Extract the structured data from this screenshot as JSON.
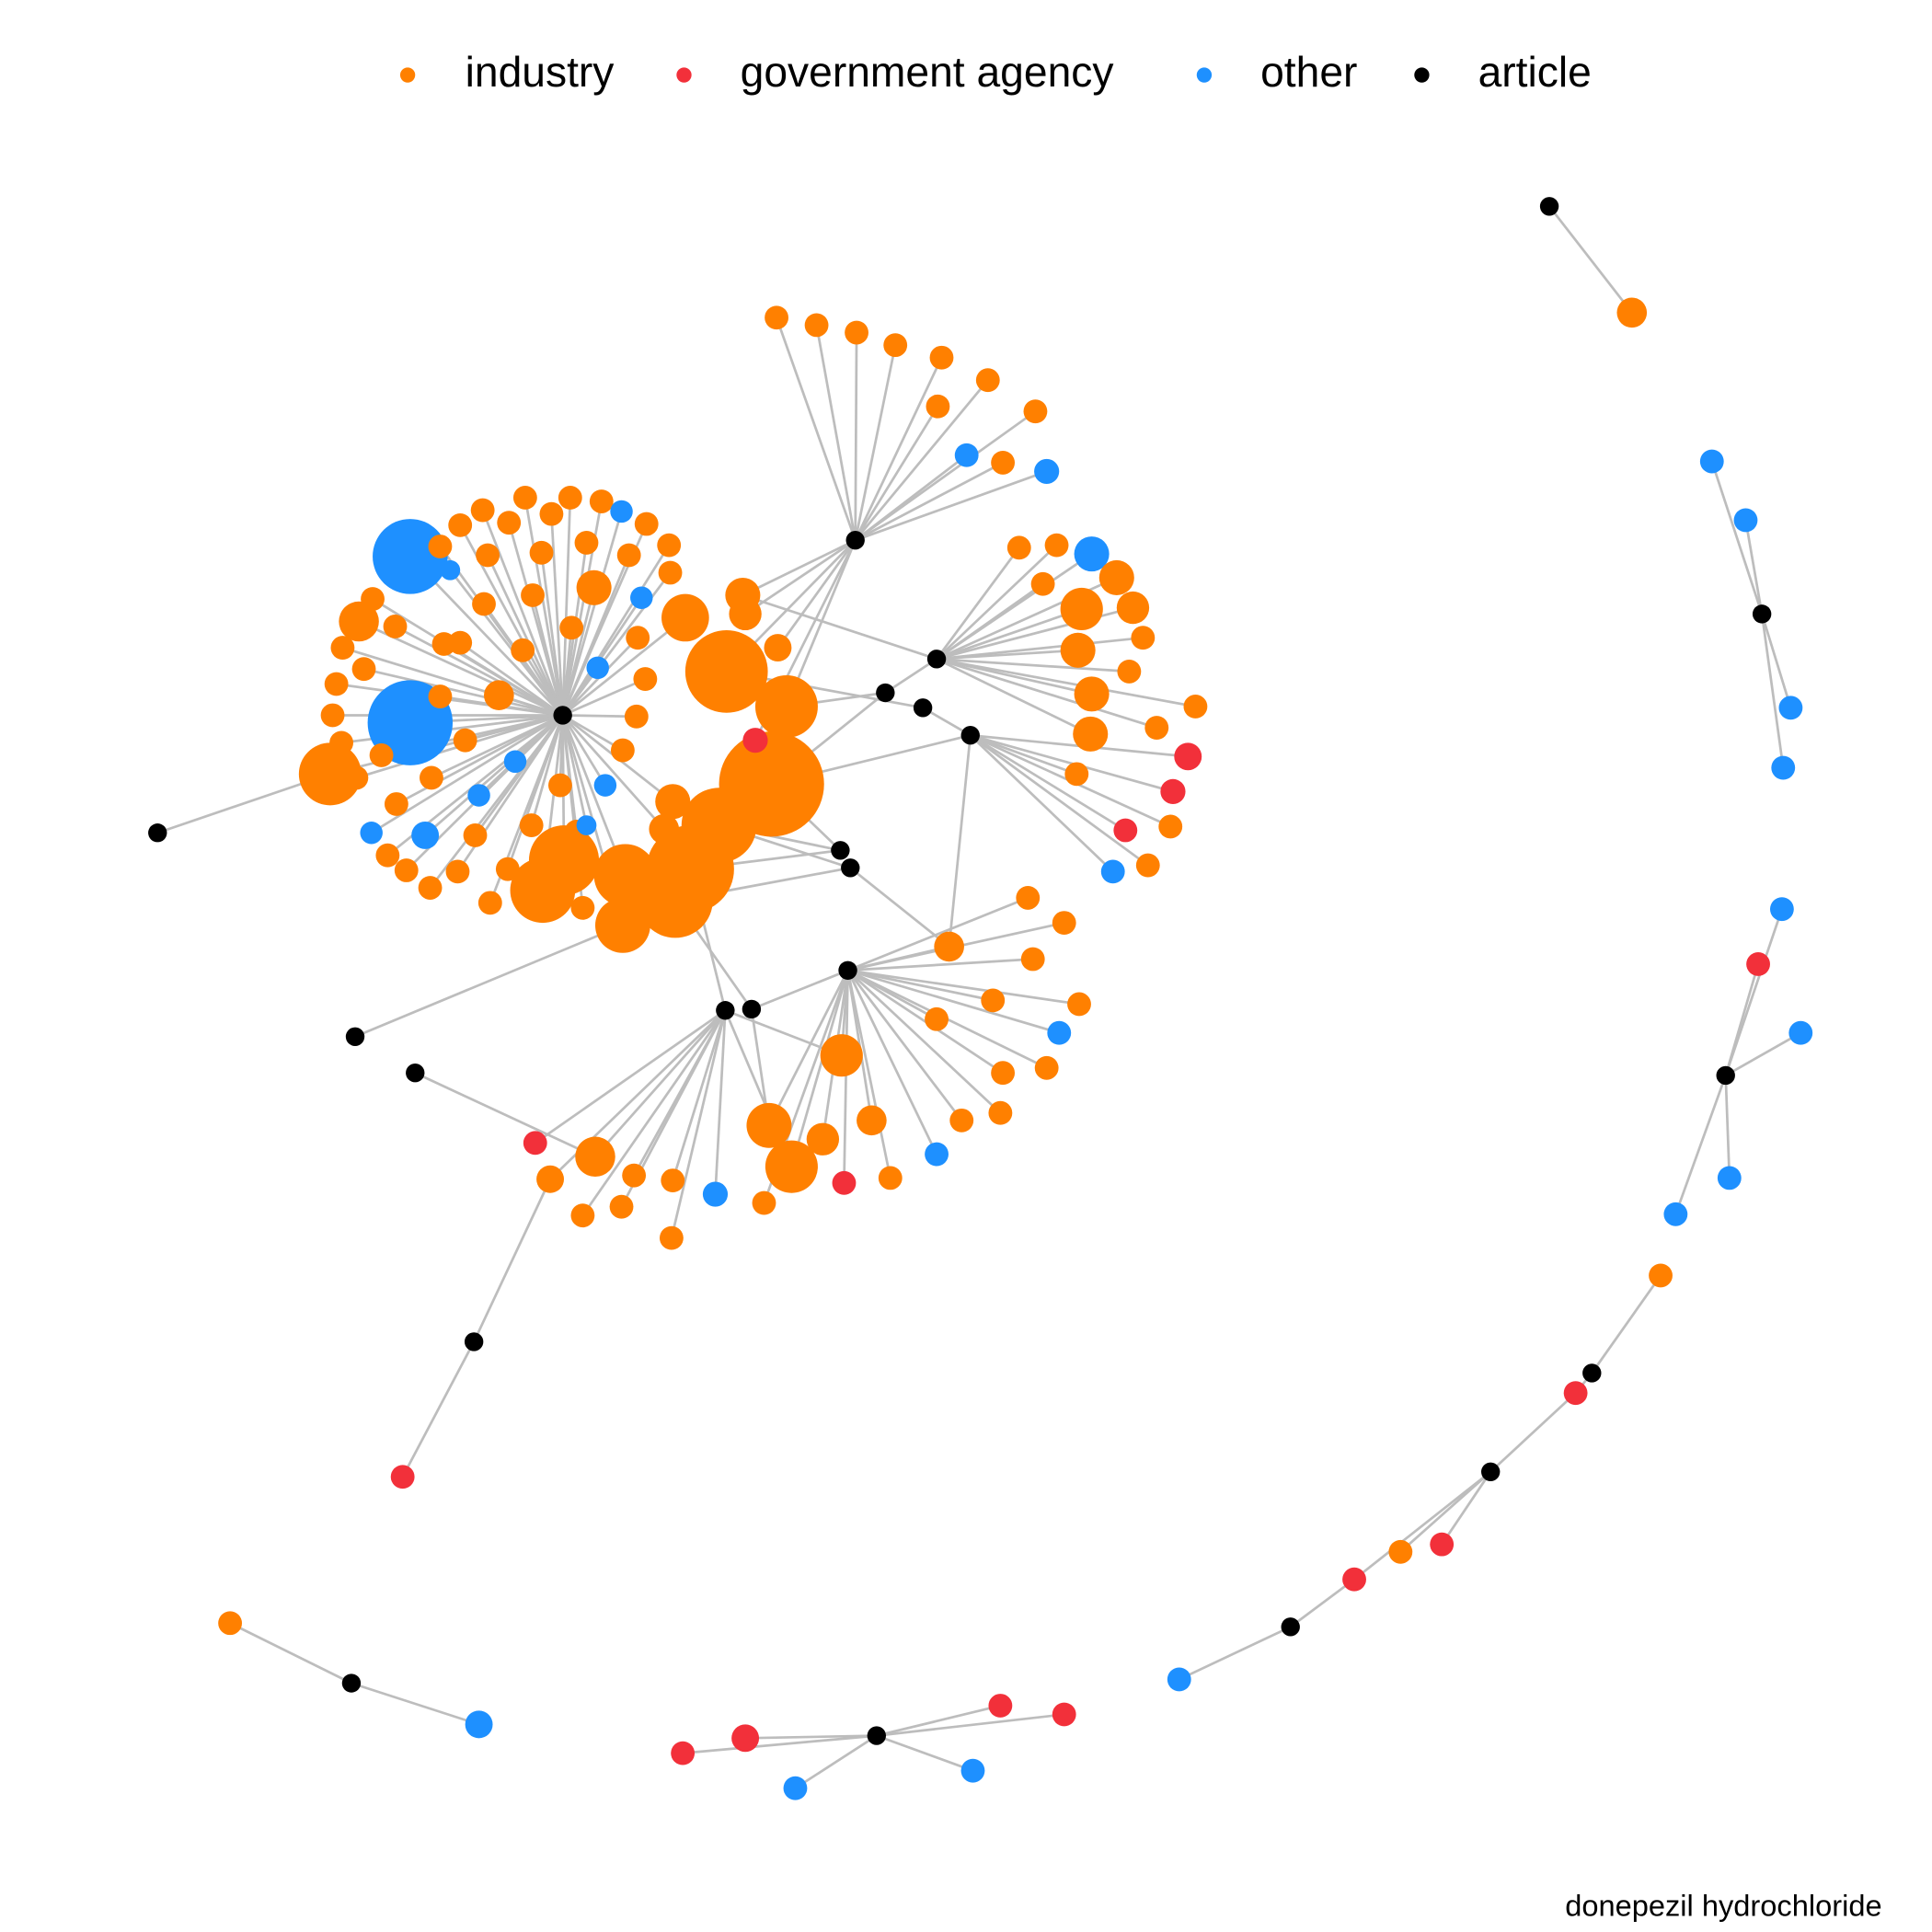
{
  "legend": {
    "items": [
      "industry",
      "government agency",
      "other",
      "article"
    ]
  },
  "caption": "donepezil hydrochloride"
}
